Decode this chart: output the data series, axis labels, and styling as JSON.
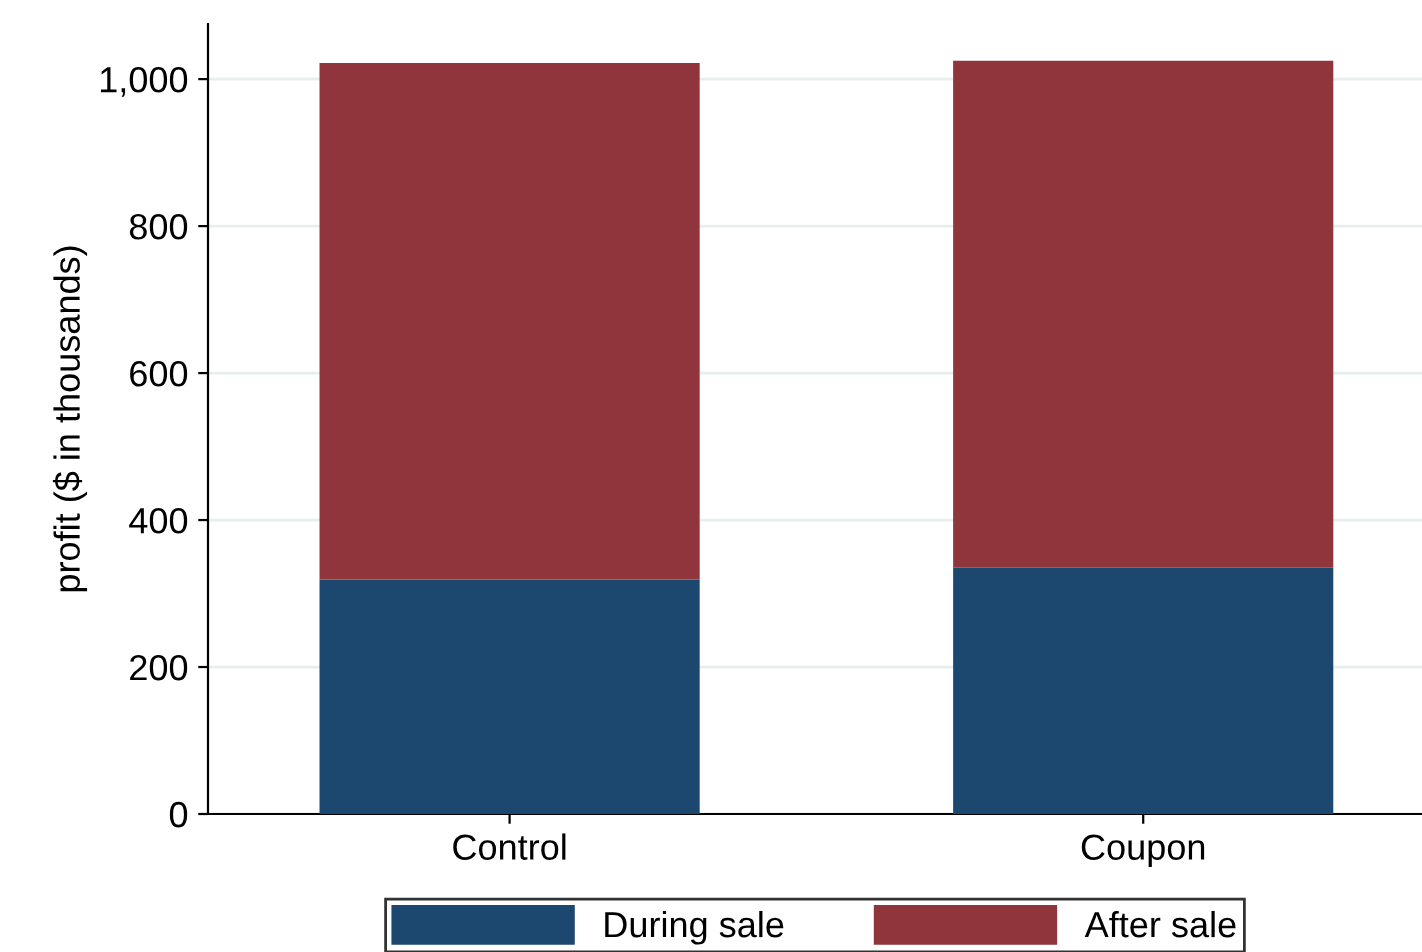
{
  "chart_data": {
    "type": "bar",
    "stacked": true,
    "categories": [
      "Control",
      "Coupon"
    ],
    "series": [
      {
        "name": "During sale",
        "color": "#1c476e",
        "values": [
          319,
          335
        ]
      },
      {
        "name": "After sale",
        "color": "#90353b",
        "values": [
          703,
          690
        ]
      }
    ],
    "ylabel": "profit ($ in thousands)",
    "ylim": [
      0,
      1075
    ],
    "yticks": [
      0,
      200,
      400,
      600,
      800,
      {
        "value": 1000,
        "label": "1,000"
      }
    ],
    "grid": "y",
    "legend": "bottom"
  }
}
